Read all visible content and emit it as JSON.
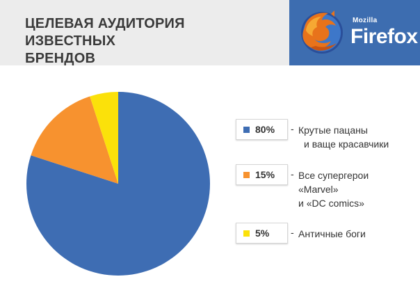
{
  "header": {
    "title_line1": "ЦЕЛЕВАЯ АУДИТОРИЯ ИЗВЕСТНЫХ",
    "title_line2": "БРЕНДОВ",
    "brand_small": "Mozilla",
    "brand_name": "Firefox",
    "logo_icon": "firefox-logo-icon"
  },
  "colors": {
    "header_bg": "#ececec",
    "brand_bg": "#3d6db0",
    "slice_blue": "#3e6db3",
    "slice_orange": "#f7922f",
    "slice_yellow": "#fbe10a"
  },
  "chart_data": {
    "type": "pie",
    "categories": [
      "Крутые пацаны и ваще красавчики",
      "Все супергерои «Marvel» и «DC comics»",
      "Античные боги"
    ],
    "values": [
      80,
      15,
      5
    ],
    "labels": [
      "80%",
      "15%",
      "5%"
    ],
    "colors": [
      "#3e6db3",
      "#f7922f",
      "#fbe10a"
    ],
    "title": "ЦЕЛЕВАЯ АУДИТОРИЯ ИЗВЕСТНЫХ БРЕНДОВ",
    "legend_placement": "right"
  },
  "legend": [
    {
      "pct": "80%",
      "dash": "-",
      "lines": [
        "Крутые пацаны",
        "и ваще красавчики"
      ]
    },
    {
      "pct": "15%",
      "dash": "-",
      "lines": [
        "Все супергерои",
        "«Marvel»",
        "и «DC comics»"
      ]
    },
    {
      "pct": "5%",
      "dash": "-",
      "lines": [
        "Античные боги"
      ]
    }
  ]
}
